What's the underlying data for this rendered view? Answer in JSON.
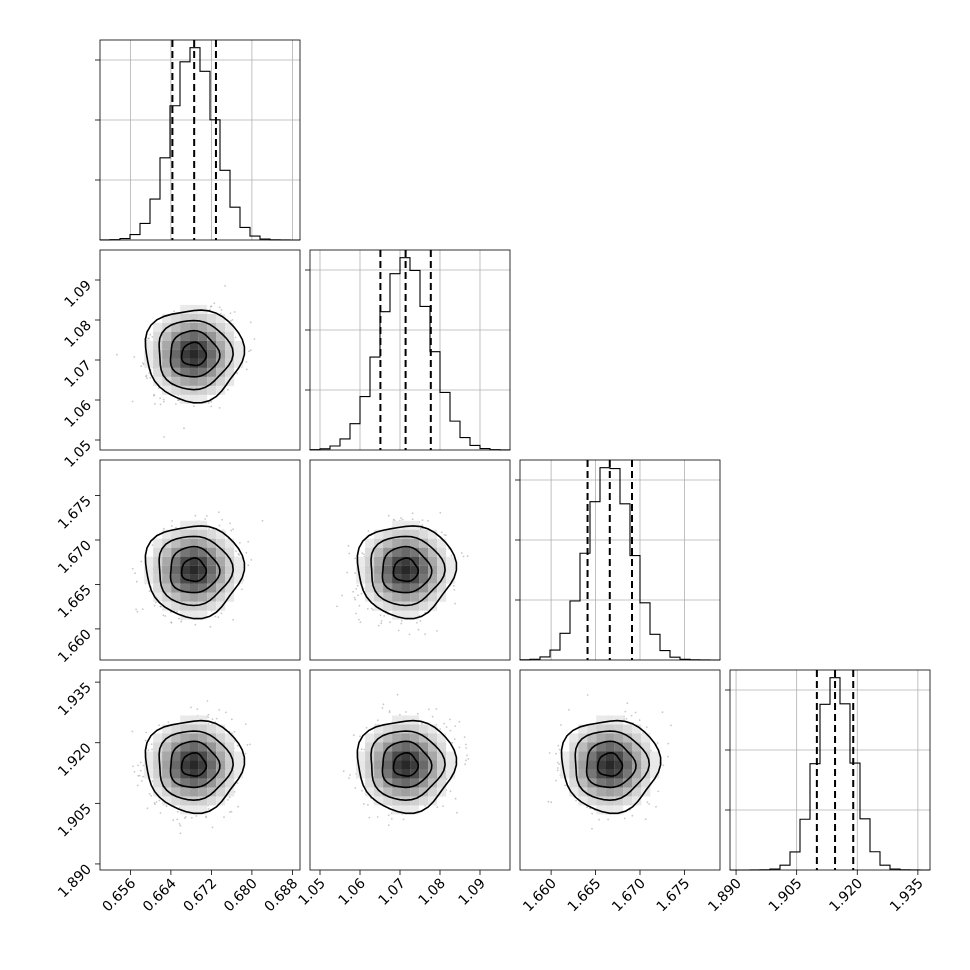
{
  "chart_data": {
    "type": "corner",
    "parameters": [
      {
        "mean": 0.6685,
        "sigma": 0.0043,
        "range": [
          0.65,
          0.6895
        ],
        "ticks": [
          0.656,
          0.664,
          0.672,
          0.68,
          0.688
        ],
        "tick_labels": [
          "0.656",
          "0.664",
          "0.672",
          "0.680",
          "0.688"
        ],
        "quantiles": [
          0.6643,
          0.6686,
          0.6729
        ]
      },
      {
        "mean": 1.0714,
        "sigma": 0.0063,
        "range": [
          1.0475,
          1.0975
        ],
        "ticks": [
          1.05,
          1.06,
          1.07,
          1.08,
          1.09
        ],
        "tick_labels": [
          "1.05",
          "1.06",
          "1.07",
          "1.08",
          "1.09"
        ],
        "quantiles": [
          1.0651,
          1.0714,
          1.0777
        ]
      },
      {
        "mean": 1.6666,
        "sigma": 0.0025,
        "range": [
          1.6565,
          1.679
        ],
        "ticks": [
          1.66,
          1.665,
          1.67,
          1.675
        ],
        "tick_labels": [
          "1.660",
          "1.665",
          "1.670",
          "1.675"
        ],
        "quantiles": [
          1.6641,
          1.6666,
          1.6691
        ]
      },
      {
        "mean": 1.9145,
        "sigma": 0.0045,
        "range": [
          1.8885,
          1.938
        ],
        "ticks": [
          1.89,
          1.905,
          1.92,
          1.935
        ],
        "tick_labels": [
          "1.890",
          "1.905",
          "1.920",
          "1.935"
        ],
        "quantiles": [
          1.91,
          1.9145,
          1.919
        ]
      }
    ],
    "histogram_bins": 20,
    "sigma_levels": [
      0.5,
      1.0,
      1.5,
      2.0
    ],
    "grid": true,
    "colors": {
      "line": "#000000",
      "grid": "#b0b0b0",
      "scatter": "#9a9a9a",
      "background": "#ffffff"
    }
  }
}
